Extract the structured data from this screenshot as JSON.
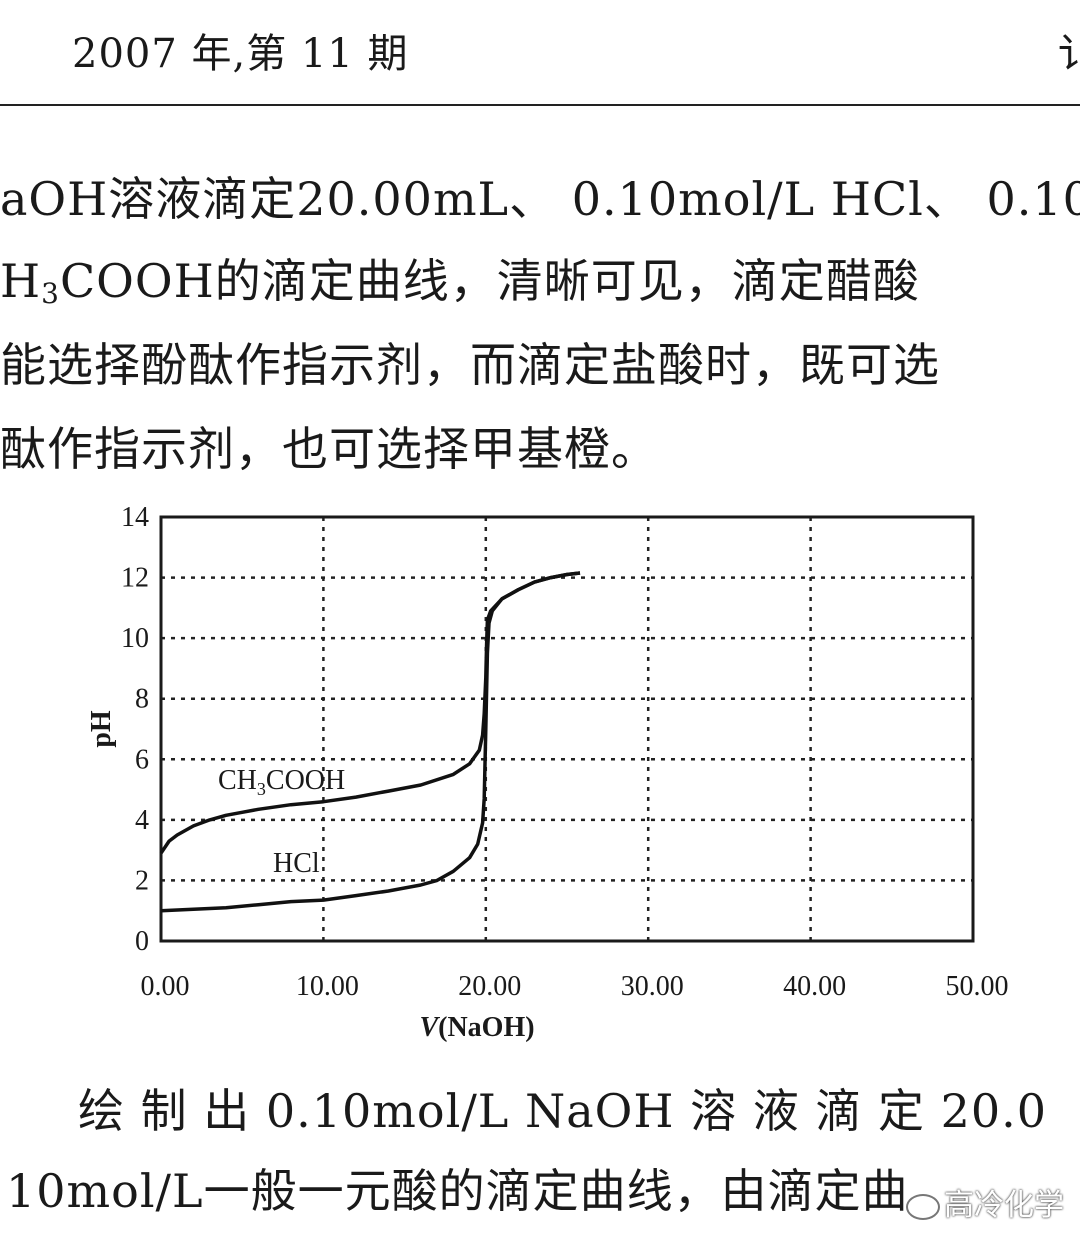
{
  "header": {
    "issue": "2007 年,第 11 期",
    "right_fragment": "讠"
  },
  "intro": {
    "line1": "aOH溶液滴定20.00mL、 0.10mol/L HCl、 0.10",
    "line2_pre": "H",
    "line2_sub": "3",
    "line2_post": "COOH的滴定曲线，清晰可见，滴定醋酸",
    "line3": "能选择酚酞作指示剂，而滴定盐酸时，既可选",
    "line4": "酞作指示剂，也可选择甲基橙。"
  },
  "chart_data": {
    "type": "line",
    "xlabel_italic": "V",
    "xlabel_rest": "(NaOH)",
    "ylabel": "pH",
    "xlim": [
      0,
      50
    ],
    "ylim": [
      0,
      14
    ],
    "x_ticks": [
      "0.00",
      "10.00",
      "20.00",
      "30.00",
      "40.00",
      "50.00"
    ],
    "y_ticks": [
      "0",
      "2",
      "4",
      "6",
      "8",
      "10",
      "12",
      "14"
    ],
    "grid": true,
    "series": [
      {
        "name_pre": "CH",
        "name_sub": "3",
        "name_post": "COOH",
        "points": [
          [
            0,
            2.9
          ],
          [
            0.5,
            3.3
          ],
          [
            1,
            3.5
          ],
          [
            2,
            3.8
          ],
          [
            3,
            4.0
          ],
          [
            4,
            4.15
          ],
          [
            5,
            4.25
          ],
          [
            6,
            4.35
          ],
          [
            8,
            4.5
          ],
          [
            10,
            4.6
          ],
          [
            12,
            4.75
          ],
          [
            14,
            4.95
          ],
          [
            16,
            5.15
          ],
          [
            18,
            5.5
          ],
          [
            19,
            5.85
          ],
          [
            19.6,
            6.3
          ],
          [
            19.8,
            6.8
          ],
          [
            19.9,
            7.5
          ],
          [
            20,
            8.7
          ],
          [
            20.05,
            9.8
          ],
          [
            20.1,
            10.6
          ],
          [
            20.3,
            10.9
          ],
          [
            21,
            11.3
          ],
          [
            22,
            11.6
          ],
          [
            23,
            11.85
          ],
          [
            24,
            12.0
          ],
          [
            25,
            12.1
          ],
          [
            25.8,
            12.15
          ]
        ]
      },
      {
        "name": "HCl",
        "points": [
          [
            0,
            1.0
          ],
          [
            2,
            1.05
          ],
          [
            4,
            1.1
          ],
          [
            6,
            1.2
          ],
          [
            8,
            1.3
          ],
          [
            10,
            1.35
          ],
          [
            12,
            1.5
          ],
          [
            14,
            1.65
          ],
          [
            16,
            1.85
          ],
          [
            17,
            2.0
          ],
          [
            18,
            2.3
          ],
          [
            19,
            2.75
          ],
          [
            19.5,
            3.2
          ],
          [
            19.8,
            3.9
          ],
          [
            19.9,
            4.7
          ],
          [
            20,
            7.0
          ],
          [
            20.1,
            9.5
          ],
          [
            20.2,
            10.5
          ],
          [
            20.4,
            10.9
          ],
          [
            21,
            11.3
          ],
          [
            22,
            11.6
          ],
          [
            23,
            11.85
          ],
          [
            24,
            12.0
          ],
          [
            25,
            12.1
          ],
          [
            25.8,
            12.15
          ]
        ]
      }
    ]
  },
  "body2": {
    "line1": "绘 制 出 0.10mol/L NaOH 溶 液 滴 定 20.0",
    "line2_pre": "10mol/L一般一元酸的滴定曲线，由",
    "line2_post": "滴定曲"
  },
  "watermark": {
    "text": "高冷化学"
  }
}
